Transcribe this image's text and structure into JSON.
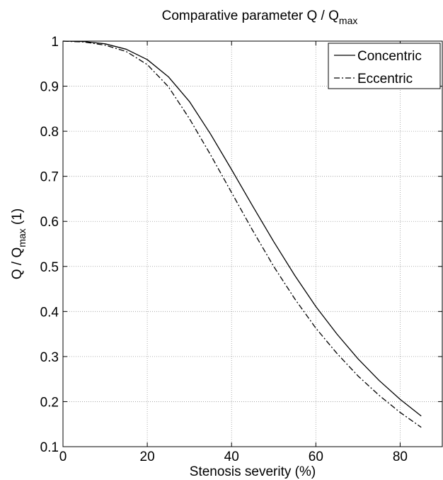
{
  "chart_data": {
    "type": "line",
    "title": {
      "main": "Comparative parameter Q / Q",
      "sub": "max"
    },
    "xlabel": "Stenosis severity  (%)",
    "ylabel": {
      "main": "Q / Q",
      "sub": "max",
      "tail": " (1)"
    },
    "xlim": [
      0,
      90
    ],
    "ylim": [
      0.1,
      1
    ],
    "xticks": [
      0,
      20,
      40,
      60,
      80
    ],
    "xtick_labels": [
      "0",
      "20",
      "40",
      "60",
      "80"
    ],
    "yticks": [
      0.1,
      0.2,
      0.3,
      0.4,
      0.5,
      0.6,
      0.7,
      0.8,
      0.9,
      1
    ],
    "ytick_labels": [
      "0.1",
      "0.2",
      "0.3",
      "0.4",
      "0.5",
      "0.6",
      "0.7",
      "0.8",
      "0.9",
      "1"
    ],
    "grid": true,
    "legend_position": "top-right",
    "x": [
      0,
      5,
      10,
      15,
      20,
      25,
      30,
      35,
      40,
      45,
      50,
      55,
      60,
      65,
      70,
      75,
      80,
      85
    ],
    "series": [
      {
        "name": "Concentric",
        "line_style": "solid",
        "color": "#000000",
        "values": [
          1.0,
          0.999,
          0.994,
          0.982,
          0.959,
          0.921,
          0.866,
          0.794,
          0.715,
          0.634,
          0.555,
          0.48,
          0.411,
          0.35,
          0.295,
          0.247,
          0.205,
          0.168
        ]
      },
      {
        "name": "Eccentric",
        "line_style": "dashdot",
        "color": "#000000",
        "values": [
          1.0,
          0.998,
          0.991,
          0.977,
          0.948,
          0.899,
          0.828,
          0.748,
          0.664,
          0.58,
          0.5,
          0.428,
          0.363,
          0.307,
          0.257,
          0.214,
          0.176,
          0.143
        ]
      }
    ]
  }
}
